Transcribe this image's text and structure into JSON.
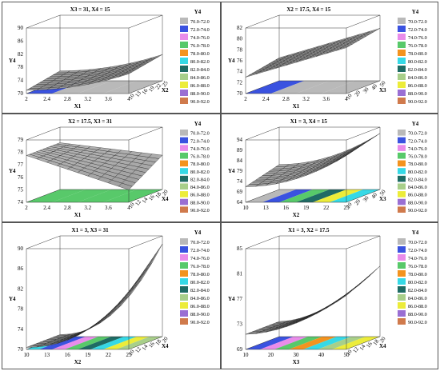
{
  "legend": {
    "title": "Y4",
    "entries": [
      {
        "label": "70.0-72.0",
        "color": "#b9b9b9"
      },
      {
        "label": "72.0-74.0",
        "color": "#3a52e0"
      },
      {
        "label": "74.0-76.0",
        "color": "#e98cea"
      },
      {
        "label": "76.0-78.0",
        "color": "#58c96a"
      },
      {
        "label": "78.0-80.0",
        "color": "#f3931f"
      },
      {
        "label": "80.0-82.0",
        "color": "#36d9e6"
      },
      {
        "label": "82.0-84.0",
        "color": "#1f6b64"
      },
      {
        "label": "84.0-86.0",
        "color": "#a8cf8a"
      },
      {
        "label": "86.0-88.0",
        "color": "#ecec3a"
      },
      {
        "label": "88.0-90.0",
        "color": "#9a6fd3"
      },
      {
        "label": "90.0-92.0",
        "color": "#d07a4c"
      }
    ]
  },
  "chart_data": [
    {
      "type": "surface3d",
      "title": "X3 = 31, X4 = 15",
      "xlabel": "X1",
      "ylabel": "X2",
      "zlabel": "Y4",
      "xticks": [
        "2",
        "2.4",
        "2.8",
        "3.2",
        "3.6",
        "4"
      ],
      "yticks": [
        "10",
        "13",
        "16",
        "19",
        "22",
        "25"
      ],
      "zticks": [
        "70",
        "74",
        "78",
        "82",
        "86",
        "90"
      ],
      "zlim": [
        70,
        90
      ]
    },
    {
      "type": "surface3d",
      "title": "X2 = 17.5, X4 = 15",
      "xlabel": "X1",
      "ylabel": "X3",
      "zlabel": "Y4",
      "xticks": [
        "2",
        "2.4",
        "2.8",
        "3.2",
        "3.6",
        "4"
      ],
      "yticks": [
        "10",
        "20",
        "30",
        "40",
        "50"
      ],
      "zticks": [
        "70",
        "72",
        "74",
        "76",
        "78",
        "80",
        "82"
      ],
      "zlim": [
        70,
        82
      ]
    },
    {
      "type": "surface3d",
      "title": "X2 = 17.5, X3 = 31",
      "xlabel": "X1",
      "ylabel": "X4",
      "zlabel": "Y4",
      "xticks": [
        "2",
        "2.4",
        "2.8",
        "3.2",
        "3.6",
        "4"
      ],
      "yticks": [
        "10",
        "12",
        "14",
        "16",
        "18",
        "20"
      ],
      "zticks": [
        "74",
        "75",
        "76",
        "77",
        "78",
        "79"
      ],
      "zlim": [
        74,
        79
      ]
    },
    {
      "type": "surface3d",
      "title": "X1 = 3, X4 = 15",
      "xlabel": "X2",
      "ylabel": "X3",
      "zlabel": "Y4",
      "xticks": [
        "10",
        "13",
        "16",
        "19",
        "22",
        "25"
      ],
      "yticks": [
        "10",
        "20",
        "30",
        "40",
        "50"
      ],
      "zticks": [
        "64",
        "69",
        "74",
        "79",
        "84",
        "89",
        "94"
      ],
      "zlim": [
        64,
        94
      ]
    },
    {
      "type": "surface3d",
      "title": "X1 = 3, X3 = 31",
      "xlabel": "X2",
      "ylabel": "X4",
      "zlabel": "Y4",
      "xticks": [
        "10",
        "13",
        "16",
        "19",
        "22",
        "25"
      ],
      "yticks": [
        "10",
        "12",
        "14",
        "16",
        "18",
        "20"
      ],
      "zticks": [
        "70",
        "74",
        "78",
        "82",
        "86",
        "90"
      ],
      "zlim": [
        70,
        90
      ]
    },
    {
      "type": "surface3d",
      "title": "X1 = 3, X2 = 17.5",
      "xlabel": "X3",
      "ylabel": "X4",
      "zlabel": "Y4",
      "xticks": [
        "10",
        "20",
        "30",
        "40",
        "50"
      ],
      "yticks": [
        "10",
        "12",
        "14",
        "16",
        "18",
        "20"
      ],
      "zticks": [
        "69",
        "73",
        "77",
        "81",
        "85"
      ],
      "zlim": [
        69,
        85
      ]
    }
  ]
}
